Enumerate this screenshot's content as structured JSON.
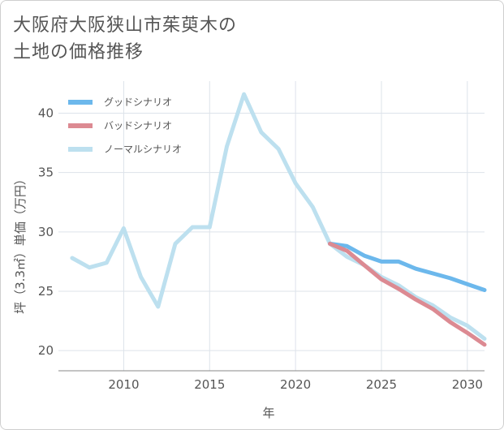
{
  "chart_data": {
    "type": "line",
    "title_lines": [
      "大阪府大阪狭山市茱萸木の",
      "土地の価格推移"
    ],
    "xlabel": "年",
    "ylabel": "坪（3.3㎡）単価（万円）",
    "xlim": [
      2006.2,
      2031
    ],
    "ylim": [
      18.3,
      42.7
    ],
    "xticks": [
      2010,
      2015,
      2020,
      2025,
      2030
    ],
    "yticks": [
      20,
      25,
      30,
      35,
      40
    ],
    "legend_position": "top-left",
    "series": [
      {
        "name": "グッドシナリオ",
        "color": "#6cb8ec",
        "points": [
          [
            2022,
            29.0
          ],
          [
            2023,
            28.8
          ],
          [
            2024,
            28.0
          ],
          [
            2025,
            27.5
          ],
          [
            2026,
            27.5
          ],
          [
            2027,
            26.9
          ],
          [
            2028,
            26.5
          ],
          [
            2029,
            26.1
          ],
          [
            2030,
            25.6
          ],
          [
            2031,
            25.1
          ]
        ]
      },
      {
        "name": "バッドシナリオ",
        "color": "#dc8a92",
        "points": [
          [
            2022,
            29.0
          ],
          [
            2023,
            28.4
          ],
          [
            2024,
            27.2
          ],
          [
            2025,
            26.0
          ],
          [
            2026,
            25.2
          ],
          [
            2027,
            24.3
          ],
          [
            2028,
            23.5
          ],
          [
            2029,
            22.4
          ],
          [
            2030,
            21.5
          ],
          [
            2031,
            20.5
          ]
        ]
      },
      {
        "name": "ノーマルシナリオ",
        "color": "#bde0ef",
        "points": [
          [
            2007,
            27.8
          ],
          [
            2008,
            27.0
          ],
          [
            2009,
            27.4
          ],
          [
            2010,
            30.3
          ],
          [
            2011,
            26.2
          ],
          [
            2012,
            23.7
          ],
          [
            2013,
            29.0
          ],
          [
            2014,
            30.4
          ],
          [
            2015,
            30.4
          ],
          [
            2016,
            37.2
          ],
          [
            2017,
            41.6
          ],
          [
            2018,
            38.4
          ],
          [
            2019,
            37.0
          ],
          [
            2020,
            34.1
          ],
          [
            2021,
            32.1
          ],
          [
            2022,
            29.0
          ],
          [
            2023,
            27.9
          ],
          [
            2024,
            27.2
          ],
          [
            2025,
            26.2
          ],
          [
            2026,
            25.5
          ],
          [
            2027,
            24.5
          ],
          [
            2028,
            23.8
          ],
          [
            2029,
            22.8
          ],
          [
            2030,
            22.1
          ],
          [
            2031,
            21.0
          ]
        ]
      }
    ]
  }
}
